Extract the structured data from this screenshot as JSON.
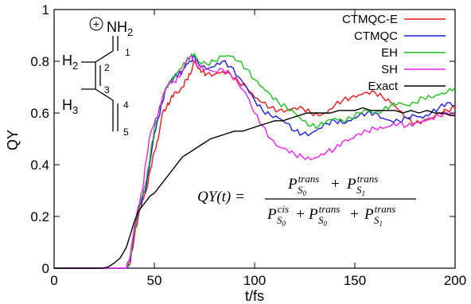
{
  "chart_data": {
    "type": "line",
    "xlabel": "t/fs",
    "ylabel": "QY",
    "xlim": [
      0,
      200
    ],
    "ylim": [
      0,
      1
    ],
    "x_ticks": [
      "0",
      "50",
      "100",
      "150",
      "200"
    ],
    "y_ticks": [
      "0",
      "0.2",
      "0.4",
      "0.6",
      "0.8",
      "1"
    ],
    "grid": false,
    "legend_position": "top-right",
    "series": [
      {
        "name": "CTMQC-E",
        "color": "#e41a1c",
        "points": [
          [
            0,
            0
          ],
          [
            36,
            0
          ],
          [
            38,
            0.02
          ],
          [
            40,
            0.12
          ],
          [
            42,
            0.2
          ],
          [
            44,
            0.26
          ],
          [
            46,
            0.3
          ],
          [
            48,
            0.38
          ],
          [
            50,
            0.45
          ],
          [
            52,
            0.5
          ],
          [
            54,
            0.6
          ],
          [
            56,
            0.62
          ],
          [
            58,
            0.65
          ],
          [
            60,
            0.68
          ],
          [
            62,
            0.68
          ],
          [
            64,
            0.7
          ],
          [
            66,
            0.73
          ],
          [
            68,
            0.75
          ],
          [
            70,
            0.8
          ],
          [
            72,
            0.77
          ],
          [
            74,
            0.76
          ],
          [
            76,
            0.75
          ],
          [
            80,
            0.75
          ],
          [
            84,
            0.76
          ],
          [
            88,
            0.75
          ],
          [
            92,
            0.72
          ],
          [
            96,
            0.7
          ],
          [
            100,
            0.66
          ],
          [
            104,
            0.64
          ],
          [
            108,
            0.62
          ],
          [
            112,
            0.61
          ],
          [
            116,
            0.61
          ],
          [
            120,
            0.62
          ],
          [
            124,
            0.62
          ],
          [
            128,
            0.6
          ],
          [
            132,
            0.59
          ],
          [
            136,
            0.6
          ],
          [
            140,
            0.63
          ],
          [
            144,
            0.65
          ],
          [
            148,
            0.66
          ],
          [
            152,
            0.67
          ],
          [
            156,
            0.68
          ],
          [
            160,
            0.68
          ],
          [
            164,
            0.66
          ],
          [
            168,
            0.64
          ],
          [
            172,
            0.61
          ],
          [
            176,
            0.58
          ],
          [
            180,
            0.56
          ],
          [
            184,
            0.57
          ],
          [
            188,
            0.58
          ],
          [
            192,
            0.6
          ],
          [
            196,
            0.61
          ],
          [
            200,
            0.62
          ]
        ]
      },
      {
        "name": "CTMQC",
        "color": "#1f1fd6",
        "points": [
          [
            0,
            0
          ],
          [
            36,
            0
          ],
          [
            38,
            0.03
          ],
          [
            40,
            0.14
          ],
          [
            42,
            0.22
          ],
          [
            44,
            0.27
          ],
          [
            46,
            0.32
          ],
          [
            48,
            0.42
          ],
          [
            50,
            0.52
          ],
          [
            52,
            0.58
          ],
          [
            54,
            0.64
          ],
          [
            56,
            0.7
          ],
          [
            58,
            0.72
          ],
          [
            60,
            0.74
          ],
          [
            62,
            0.75
          ],
          [
            64,
            0.76
          ],
          [
            66,
            0.79
          ],
          [
            68,
            0.8
          ],
          [
            70,
            0.82
          ],
          [
            72,
            0.79
          ],
          [
            76,
            0.77
          ],
          [
            80,
            0.78
          ],
          [
            84,
            0.8
          ],
          [
            88,
            0.78
          ],
          [
            92,
            0.74
          ],
          [
            96,
            0.7
          ],
          [
            100,
            0.65
          ],
          [
            104,
            0.61
          ],
          [
            108,
            0.59
          ],
          [
            112,
            0.58
          ],
          [
            116,
            0.56
          ],
          [
            120,
            0.53
          ],
          [
            124,
            0.52
          ],
          [
            128,
            0.52
          ],
          [
            132,
            0.54
          ],
          [
            136,
            0.56
          ],
          [
            140,
            0.57
          ],
          [
            144,
            0.56
          ],
          [
            148,
            0.57
          ],
          [
            152,
            0.59
          ],
          [
            156,
            0.6
          ],
          [
            160,
            0.6
          ],
          [
            164,
            0.58
          ],
          [
            168,
            0.57
          ],
          [
            172,
            0.57
          ],
          [
            176,
            0.58
          ],
          [
            180,
            0.59
          ],
          [
            184,
            0.58
          ],
          [
            188,
            0.6
          ],
          [
            192,
            0.62
          ],
          [
            196,
            0.64
          ],
          [
            200,
            0.63
          ]
        ]
      },
      {
        "name": "EH",
        "color": "#1fbf1f",
        "points": [
          [
            0,
            0
          ],
          [
            36,
            0
          ],
          [
            38,
            0.04
          ],
          [
            40,
            0.14
          ],
          [
            42,
            0.22
          ],
          [
            44,
            0.28
          ],
          [
            46,
            0.34
          ],
          [
            48,
            0.44
          ],
          [
            50,
            0.54
          ],
          [
            52,
            0.6
          ],
          [
            54,
            0.66
          ],
          [
            56,
            0.7
          ],
          [
            58,
            0.72
          ],
          [
            60,
            0.74
          ],
          [
            62,
            0.76
          ],
          [
            64,
            0.78
          ],
          [
            66,
            0.8
          ],
          [
            68,
            0.82
          ],
          [
            70,
            0.83
          ],
          [
            72,
            0.8
          ],
          [
            76,
            0.79
          ],
          [
            80,
            0.8
          ],
          [
            84,
            0.82
          ],
          [
            88,
            0.82
          ],
          [
            92,
            0.8
          ],
          [
            96,
            0.77
          ],
          [
            100,
            0.73
          ],
          [
            104,
            0.7
          ],
          [
            108,
            0.67
          ],
          [
            112,
            0.64
          ],
          [
            116,
            0.62
          ],
          [
            120,
            0.6
          ],
          [
            124,
            0.57
          ],
          [
            128,
            0.55
          ],
          [
            132,
            0.55
          ],
          [
            136,
            0.57
          ],
          [
            140,
            0.58
          ],
          [
            144,
            0.57
          ],
          [
            148,
            0.58
          ],
          [
            152,
            0.6
          ],
          [
            156,
            0.61
          ],
          [
            160,
            0.6
          ],
          [
            164,
            0.61
          ],
          [
            168,
            0.63
          ],
          [
            172,
            0.64
          ],
          [
            176,
            0.63
          ],
          [
            180,
            0.64
          ],
          [
            184,
            0.66
          ],
          [
            188,
            0.66
          ],
          [
            192,
            0.67
          ],
          [
            196,
            0.68
          ],
          [
            200,
            0.7
          ]
        ]
      },
      {
        "name": "SH",
        "color": "#ee1fee",
        "points": [
          [
            0,
            0
          ],
          [
            36,
            0
          ],
          [
            38,
            0.05
          ],
          [
            40,
            0.16
          ],
          [
            42,
            0.24
          ],
          [
            44,
            0.3
          ],
          [
            46,
            0.42
          ],
          [
            48,
            0.52
          ],
          [
            50,
            0.56
          ],
          [
            52,
            0.6
          ],
          [
            54,
            0.66
          ],
          [
            56,
            0.7
          ],
          [
            58,
            0.72
          ],
          [
            60,
            0.72
          ],
          [
            62,
            0.74
          ],
          [
            64,
            0.76
          ],
          [
            66,
            0.8
          ],
          [
            68,
            0.82
          ],
          [
            70,
            0.8
          ],
          [
            72,
            0.78
          ],
          [
            76,
            0.77
          ],
          [
            80,
            0.76
          ],
          [
            84,
            0.77
          ],
          [
            88,
            0.75
          ],
          [
            92,
            0.71
          ],
          [
            96,
            0.67
          ],
          [
            100,
            0.6
          ],
          [
            104,
            0.55
          ],
          [
            108,
            0.5
          ],
          [
            112,
            0.47
          ],
          [
            116,
            0.46
          ],
          [
            120,
            0.44
          ],
          [
            124,
            0.43
          ],
          [
            128,
            0.42
          ],
          [
            132,
            0.43
          ],
          [
            136,
            0.45
          ],
          [
            140,
            0.46
          ],
          [
            144,
            0.49
          ],
          [
            148,
            0.5
          ],
          [
            152,
            0.52
          ],
          [
            156,
            0.53
          ],
          [
            160,
            0.54
          ],
          [
            164,
            0.54
          ],
          [
            168,
            0.55
          ],
          [
            172,
            0.56
          ],
          [
            176,
            0.55
          ],
          [
            180,
            0.56
          ],
          [
            184,
            0.57
          ],
          [
            188,
            0.58
          ],
          [
            192,
            0.59
          ],
          [
            196,
            0.6
          ],
          [
            200,
            0.59
          ]
        ]
      },
      {
        "name": "Exact",
        "color": "#000000",
        "points": [
          [
            0,
            0
          ],
          [
            24,
            0
          ],
          [
            27,
            0.005
          ],
          [
            30,
            0.02
          ],
          [
            33,
            0.04
          ],
          [
            36,
            0.08
          ],
          [
            38,
            0.13
          ],
          [
            40,
            0.18
          ],
          [
            42,
            0.22
          ],
          [
            44,
            0.24
          ],
          [
            46,
            0.26
          ],
          [
            48,
            0.28
          ],
          [
            50,
            0.29
          ],
          [
            52,
            0.31
          ],
          [
            54,
            0.33
          ],
          [
            56,
            0.35
          ],
          [
            58,
            0.37
          ],
          [
            60,
            0.39
          ],
          [
            62,
            0.41
          ],
          [
            64,
            0.43
          ],
          [
            66,
            0.44
          ],
          [
            68,
            0.45
          ],
          [
            70,
            0.46
          ],
          [
            74,
            0.48
          ],
          [
            78,
            0.5
          ],
          [
            82,
            0.51
          ],
          [
            86,
            0.52
          ],
          [
            90,
            0.53
          ],
          [
            94,
            0.53
          ],
          [
            98,
            0.54
          ],
          [
            102,
            0.55
          ],
          [
            106,
            0.56
          ],
          [
            110,
            0.57
          ],
          [
            114,
            0.57
          ],
          [
            118,
            0.58
          ],
          [
            122,
            0.59
          ],
          [
            126,
            0.6
          ],
          [
            130,
            0.6
          ],
          [
            134,
            0.6
          ],
          [
            138,
            0.6
          ],
          [
            142,
            0.61
          ],
          [
            146,
            0.61
          ],
          [
            150,
            0.61
          ],
          [
            154,
            0.62
          ],
          [
            158,
            0.61
          ],
          [
            162,
            0.61
          ],
          [
            166,
            0.61
          ],
          [
            170,
            0.61
          ],
          [
            174,
            0.6
          ],
          [
            178,
            0.61
          ],
          [
            182,
            0.6
          ],
          [
            186,
            0.61
          ],
          [
            190,
            0.6
          ],
          [
            194,
            0.6
          ],
          [
            198,
            0.59
          ],
          [
            200,
            0.59
          ]
        ]
      }
    ]
  },
  "molecule": {
    "charge_symbol": "+",
    "nh2_label": "NH",
    "nh2_subscript": "2",
    "h2_label": "H",
    "h2_subscript": "2",
    "h3_label": "H",
    "h3_subscript": "3",
    "atom_numbers": [
      "1",
      "2",
      "3",
      "4",
      "5"
    ]
  },
  "formula": {
    "lhs": "QY(t) =",
    "numerator_terms": [
      {
        "symbol": "P",
        "sup": "trans",
        "sub": "S",
        "subsub": "0"
      },
      {
        "symbol": "P",
        "sup": "trans",
        "sub": "S",
        "subsub": "1"
      }
    ],
    "denominator_terms": [
      {
        "symbol": "P",
        "sup": "cis",
        "sub": "S",
        "subsub": "0"
      },
      {
        "symbol": "P",
        "sup": "trans",
        "sub": "S",
        "subsub": "0"
      },
      {
        "symbol": "P",
        "sup": "trans",
        "sub": "S",
        "subsub": "1"
      }
    ],
    "plus": "+"
  }
}
